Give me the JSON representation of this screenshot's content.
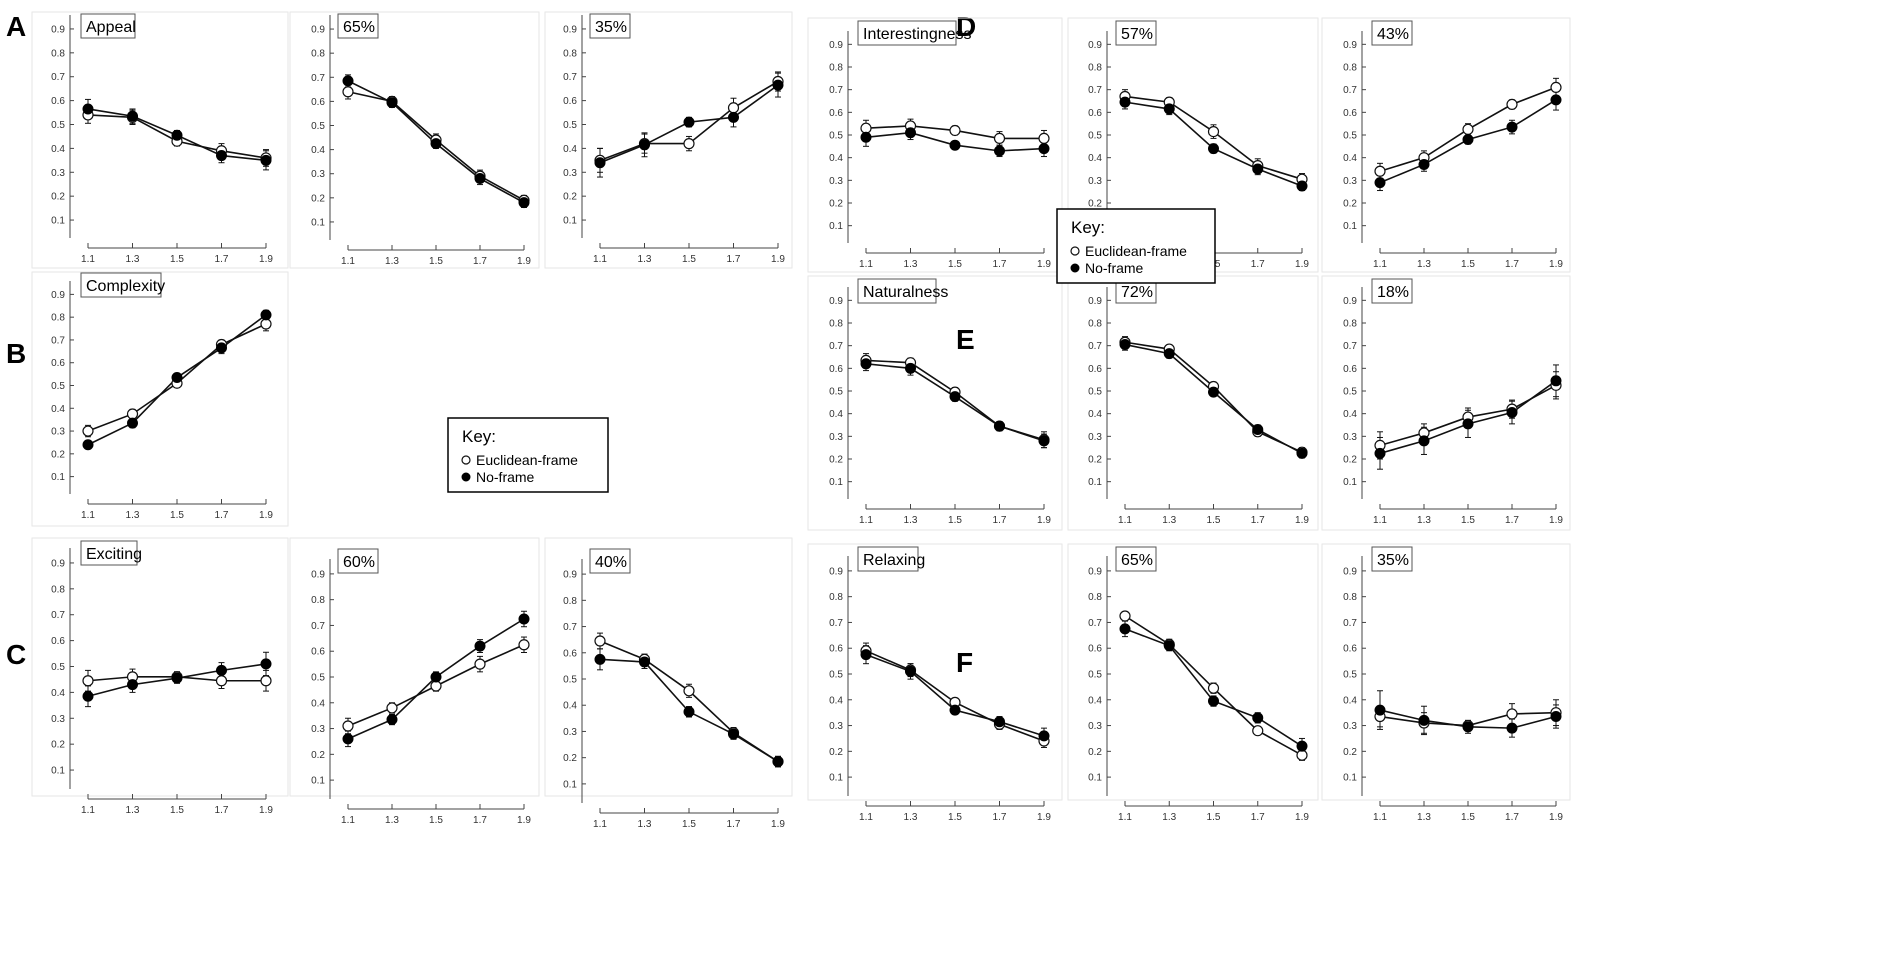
{
  "panel_letters": [
    "A",
    "B",
    "C",
    "D",
    "E",
    "F"
  ],
  "legend_a": {
    "title": "Key:",
    "entries": [
      "Euclidean-frame",
      "No-frame"
    ]
  },
  "legend_d": {
    "title": "Key:",
    "entries": [
      "Euclidean-frame",
      "No-frame"
    ]
  },
  "chart_data": [
    {
      "type": "line",
      "panel": "A",
      "title": "Appeal",
      "categories": [
        "1.1",
        "1.3",
        "1.5",
        "1.7",
        "1.9"
      ],
      "yticks": [
        "0.1",
        "0.2",
        "0.3",
        "0.4",
        "0.5",
        "0.6",
        "0.7",
        "0.8",
        "0.9"
      ],
      "ylim": [
        0.05,
        0.95
      ],
      "series": [
        {
          "name": "Euclidean-frame",
          "values": [
            0.54,
            0.53,
            0.43,
            0.39,
            0.36
          ],
          "errors": [
            0.035,
            0.03,
            0.02,
            0.03,
            0.035
          ]
        },
        {
          "name": "No-frame",
          "values": [
            0.565,
            0.535,
            0.455,
            0.37,
            0.35
          ],
          "errors": [
            0.04,
            0.03,
            0.02,
            0.03,
            0.04
          ]
        }
      ]
    },
    {
      "type": "line",
      "panel": "A",
      "title": "65%",
      "categories": [
        "1.1",
        "1.3",
        "1.5",
        "1.7",
        "1.9"
      ],
      "yticks": [
        "0.1",
        "0.2",
        "0.3",
        "0.4",
        "0.5",
        "0.6",
        "0.7",
        "0.8",
        "0.9"
      ],
      "ylim": [
        0.05,
        0.95
      ],
      "series": [
        {
          "name": "Euclidean-frame",
          "values": [
            0.64,
            0.6,
            0.44,
            0.29,
            0.19
          ],
          "errors": [
            0.03,
            0.02,
            0.025,
            0.025,
            0.02
          ]
        },
        {
          "name": "No-frame",
          "values": [
            0.685,
            0.595,
            0.425,
            0.28,
            0.18
          ],
          "errors": [
            0.025,
            0.02,
            0.02,
            0.025,
            0.02
          ]
        }
      ]
    },
    {
      "type": "line",
      "panel": "A",
      "title": "35%",
      "categories": [
        "1.1",
        "1.3",
        "1.5",
        "1.7",
        "1.9"
      ],
      "yticks": [
        "0.1",
        "0.2",
        "0.3",
        "0.4",
        "0.5",
        "0.6",
        "0.7",
        "0.8",
        "0.9"
      ],
      "ylim": [
        0.05,
        0.95
      ],
      "series": [
        {
          "name": "Euclidean-frame",
          "values": [
            0.35,
            0.42,
            0.42,
            0.57,
            0.68
          ],
          "errors": [
            0.05,
            0.04,
            0.03,
            0.04,
            0.04
          ]
        },
        {
          "name": "No-frame",
          "values": [
            0.34,
            0.415,
            0.51,
            0.53,
            0.665
          ],
          "errors": [
            0.06,
            0.05,
            0.02,
            0.04,
            0.05
          ]
        }
      ]
    },
    {
      "type": "line",
      "panel": "B",
      "title": "Complexity",
      "categories": [
        "1.1",
        "1.3",
        "1.5",
        "1.7",
        "1.9"
      ],
      "yticks": [
        "0.1",
        "0.2",
        "0.3",
        "0.4",
        "0.5",
        "0.6",
        "0.7",
        "0.8",
        "0.9"
      ],
      "ylim": [
        0.05,
        0.95
      ],
      "series": [
        {
          "name": "Euclidean-frame",
          "values": [
            0.3,
            0.375,
            0.51,
            0.68,
            0.77
          ],
          "errors": [
            0.025,
            0.02,
            0.015,
            0.02,
            0.03
          ]
        },
        {
          "name": "No-frame",
          "values": [
            0.24,
            0.335,
            0.535,
            0.665,
            0.81
          ],
          "errors": [
            0.015,
            0.02,
            0.015,
            0.025,
            0.02
          ]
        }
      ]
    },
    {
      "type": "line",
      "panel": "C",
      "title": "Exciting",
      "categories": [
        "1.1",
        "1.3",
        "1.5",
        "1.7",
        "1.9"
      ],
      "yticks": [
        "0.1",
        "0.2",
        "0.3",
        "0.4",
        "0.5",
        "0.6",
        "0.7",
        "0.8",
        "0.9"
      ],
      "ylim": [
        0.05,
        0.95
      ],
      "series": [
        {
          "name": "Euclidean-frame",
          "values": [
            0.445,
            0.46,
            0.46,
            0.445,
            0.445
          ],
          "errors": [
            0.04,
            0.03,
            0.02,
            0.03,
            0.04
          ]
        },
        {
          "name": "No-frame",
          "values": [
            0.385,
            0.43,
            0.455,
            0.485,
            0.51
          ],
          "errors": [
            0.04,
            0.03,
            0.02,
            0.03,
            0.045
          ]
        }
      ]
    },
    {
      "type": "line",
      "panel": "C",
      "title": "60%",
      "categories": [
        "1.1",
        "1.3",
        "1.5",
        "1.7",
        "1.9"
      ],
      "yticks": [
        "0.1",
        "0.2",
        "0.3",
        "0.4",
        "0.5",
        "0.6",
        "0.7",
        "0.8",
        "0.9"
      ],
      "ylim": [
        0.05,
        0.95
      ],
      "series": [
        {
          "name": "Euclidean-frame",
          "values": [
            0.31,
            0.38,
            0.465,
            0.55,
            0.625
          ],
          "errors": [
            0.03,
            0.02,
            0.02,
            0.03,
            0.03
          ]
        },
        {
          "name": "No-frame",
          "values": [
            0.26,
            0.335,
            0.5,
            0.62,
            0.725
          ],
          "errors": [
            0.03,
            0.02,
            0.02,
            0.025,
            0.03
          ]
        }
      ]
    },
    {
      "type": "line",
      "panel": "C",
      "title": "40%",
      "categories": [
        "1.1",
        "1.3",
        "1.5",
        "1.7",
        "1.9"
      ],
      "yticks": [
        "0.1",
        "0.2",
        "0.3",
        "0.4",
        "0.5",
        "0.6",
        "0.7",
        "0.8",
        "0.9"
      ],
      "ylim": [
        0.05,
        0.95
      ],
      "series": [
        {
          "name": "Euclidean-frame",
          "values": [
            0.645,
            0.575,
            0.455,
            0.295,
            0.185
          ],
          "errors": [
            0.03,
            0.02,
            0.025,
            0.02,
            0.02
          ]
        },
        {
          "name": "No-frame",
          "values": [
            0.575,
            0.565,
            0.375,
            0.29,
            0.185
          ],
          "errors": [
            0.04,
            0.025,
            0.02,
            0.02,
            0.02
          ]
        }
      ]
    },
    {
      "type": "line",
      "panel": "D",
      "title": "Interestingness",
      "categories": [
        "1.1",
        "1.3",
        "1.5",
        "1.7",
        "1.9"
      ],
      "yticks": [
        "0.1",
        "0.2",
        "0.3",
        "0.4",
        "0.5",
        "0.6",
        "0.7",
        "0.8",
        "0.9"
      ],
      "ylim": [
        0.05,
        0.95
      ],
      "series": [
        {
          "name": "Euclidean-frame",
          "values": [
            0.53,
            0.54,
            0.52,
            0.485,
            0.485
          ],
          "errors": [
            0.035,
            0.03,
            0.02,
            0.03,
            0.035
          ]
        },
        {
          "name": "No-frame",
          "values": [
            0.49,
            0.51,
            0.455,
            0.43,
            0.44
          ],
          "errors": [
            0.04,
            0.03,
            0.015,
            0.025,
            0.035
          ]
        }
      ]
    },
    {
      "type": "line",
      "panel": "D",
      "title": "57%",
      "categories": [
        "1.1",
        "1.3",
        "1.5",
        "1.7",
        "1.9"
      ],
      "yticks": [
        "0.1",
        "0.2",
        "0.3",
        "0.4",
        "0.5",
        "0.6",
        "0.7",
        "0.8",
        "0.9"
      ],
      "ylim": [
        0.05,
        0.95
      ],
      "series": [
        {
          "name": "Euclidean-frame",
          "values": [
            0.67,
            0.645,
            0.515,
            0.365,
            0.305
          ],
          "errors": [
            0.03,
            0.02,
            0.03,
            0.03,
            0.025
          ]
        },
        {
          "name": "No-frame",
          "values": [
            0.645,
            0.615,
            0.44,
            0.35,
            0.275
          ],
          "errors": [
            0.03,
            0.025,
            0.02,
            0.025,
            0.02
          ]
        }
      ]
    },
    {
      "type": "line",
      "panel": "D",
      "title": "43%",
      "categories": [
        "1.1",
        "1.3",
        "1.5",
        "1.7",
        "1.9"
      ],
      "yticks": [
        "0.1",
        "0.2",
        "0.3",
        "0.4",
        "0.5",
        "0.6",
        "0.7",
        "0.8",
        "0.9"
      ],
      "ylim": [
        0.05,
        0.95
      ],
      "series": [
        {
          "name": "Euclidean-frame",
          "values": [
            0.34,
            0.4,
            0.525,
            0.635,
            0.71
          ],
          "errors": [
            0.035,
            0.03,
            0.025,
            0.02,
            0.04
          ]
        },
        {
          "name": "No-frame",
          "values": [
            0.29,
            0.37,
            0.48,
            0.535,
            0.655
          ],
          "errors": [
            0.035,
            0.03,
            0.02,
            0.03,
            0.045
          ]
        }
      ]
    },
    {
      "type": "line",
      "panel": "E",
      "title": "Naturalness",
      "categories": [
        "1.1",
        "1.3",
        "1.5",
        "1.7",
        "1.9"
      ],
      "yticks": [
        "0.1",
        "0.2",
        "0.3",
        "0.4",
        "0.5",
        "0.6",
        "0.7",
        "0.8",
        "0.9"
      ],
      "ylim": [
        0.05,
        0.95
      ],
      "series": [
        {
          "name": "Euclidean-frame",
          "values": [
            0.635,
            0.625,
            0.495,
            0.345,
            0.285
          ],
          "errors": [
            0.03,
            0.02,
            0.02,
            0.02,
            0.035
          ]
        },
        {
          "name": "No-frame",
          "values": [
            0.62,
            0.6,
            0.475,
            0.345,
            0.28
          ],
          "errors": [
            0.03,
            0.03,
            0.02,
            0.02,
            0.03
          ]
        }
      ]
    },
    {
      "type": "line",
      "panel": "E",
      "title": "72%",
      "categories": [
        "1.1",
        "1.3",
        "1.5",
        "1.7",
        "1.9"
      ],
      "yticks": [
        "0.1",
        "0.2",
        "0.3",
        "0.4",
        "0.5",
        "0.6",
        "0.7",
        "0.8",
        "0.9"
      ],
      "ylim": [
        0.05,
        0.95
      ],
      "series": [
        {
          "name": "Euclidean-frame",
          "values": [
            0.715,
            0.685,
            0.52,
            0.32,
            0.23
          ],
          "errors": [
            0.025,
            0.015,
            0.02,
            0.02,
            0.02
          ]
        },
        {
          "name": "No-frame",
          "values": [
            0.705,
            0.665,
            0.495,
            0.33,
            0.225
          ],
          "errors": [
            0.025,
            0.02,
            0.015,
            0.02,
            0.02
          ]
        }
      ]
    },
    {
      "type": "line",
      "panel": "E",
      "title": "18%",
      "categories": [
        "1.1",
        "1.3",
        "1.5",
        "1.7",
        "1.9"
      ],
      "yticks": [
        "0.1",
        "0.2",
        "0.3",
        "0.4",
        "0.5",
        "0.6",
        "0.7",
        "0.8",
        "0.9"
      ],
      "ylim": [
        0.05,
        0.95
      ],
      "series": [
        {
          "name": "Euclidean-frame",
          "values": [
            0.26,
            0.315,
            0.385,
            0.42,
            0.525
          ],
          "errors": [
            0.06,
            0.04,
            0.04,
            0.04,
            0.06
          ]
        },
        {
          "name": "No-frame",
          "values": [
            0.225,
            0.28,
            0.355,
            0.405,
            0.545
          ],
          "errors": [
            0.07,
            0.06,
            0.06,
            0.05,
            0.07
          ]
        }
      ]
    },
    {
      "type": "line",
      "panel": "F",
      "title": "Relaxing",
      "categories": [
        "1.1",
        "1.3",
        "1.5",
        "1.7",
        "1.9"
      ],
      "yticks": [
        "0.1",
        "0.2",
        "0.3",
        "0.4",
        "0.5",
        "0.6",
        "0.7",
        "0.8",
        "0.9"
      ],
      "ylim": [
        0.05,
        0.95
      ],
      "series": [
        {
          "name": "Euclidean-frame",
          "values": [
            0.59,
            0.515,
            0.39,
            0.305,
            0.24
          ],
          "errors": [
            0.03,
            0.025,
            0.015,
            0.02,
            0.025
          ]
        },
        {
          "name": "No-frame",
          "values": [
            0.575,
            0.51,
            0.36,
            0.315,
            0.26
          ],
          "errors": [
            0.035,
            0.03,
            0.015,
            0.02,
            0.03
          ]
        }
      ]
    },
    {
      "type": "line",
      "panel": "F",
      "title": "65%",
      "categories": [
        "1.1",
        "1.3",
        "1.5",
        "1.7",
        "1.9"
      ],
      "yticks": [
        "0.1",
        "0.2",
        "0.3",
        "0.4",
        "0.5",
        "0.6",
        "0.7",
        "0.8",
        "0.9"
      ],
      "ylim": [
        0.05,
        0.95
      ],
      "series": [
        {
          "name": "Euclidean-frame",
          "values": [
            0.725,
            0.615,
            0.445,
            0.28,
            0.185
          ],
          "errors": [
            0.015,
            0.02,
            0.02,
            0.015,
            0.02
          ]
        },
        {
          "name": "No-frame",
          "values": [
            0.675,
            0.61,
            0.395,
            0.33,
            0.22
          ],
          "errors": [
            0.03,
            0.02,
            0.02,
            0.02,
            0.03
          ]
        }
      ]
    },
    {
      "type": "line",
      "panel": "F",
      "title": "35%",
      "categories": [
        "1.1",
        "1.3",
        "1.5",
        "1.7",
        "1.9"
      ],
      "yticks": [
        "0.1",
        "0.2",
        "0.3",
        "0.4",
        "0.5",
        "0.6",
        "0.7",
        "0.8",
        "0.9"
      ],
      "ylim": [
        0.05,
        0.95
      ],
      "series": [
        {
          "name": "Euclidean-frame",
          "values": [
            0.335,
            0.31,
            0.3,
            0.345,
            0.35
          ],
          "errors": [
            0.04,
            0.04,
            0.02,
            0.04,
            0.05
          ]
        },
        {
          "name": "No-frame",
          "values": [
            0.36,
            0.32,
            0.295,
            0.29,
            0.335
          ],
          "errors": [
            0.075,
            0.055,
            0.025,
            0.035,
            0.045
          ]
        }
      ]
    }
  ]
}
